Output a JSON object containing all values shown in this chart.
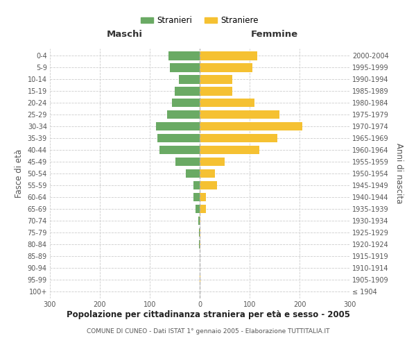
{
  "age_groups": [
    "100+",
    "95-99",
    "90-94",
    "85-89",
    "80-84",
    "75-79",
    "70-74",
    "65-69",
    "60-64",
    "55-59",
    "50-54",
    "45-49",
    "40-44",
    "35-39",
    "30-34",
    "25-29",
    "20-24",
    "15-19",
    "10-14",
    "5-9",
    "0-4"
  ],
  "birth_years": [
    "≤ 1904",
    "1905-1909",
    "1910-1914",
    "1915-1919",
    "1920-1924",
    "1925-1929",
    "1930-1934",
    "1935-1939",
    "1940-1944",
    "1945-1949",
    "1950-1954",
    "1955-1959",
    "1960-1964",
    "1965-1969",
    "1970-1974",
    "1975-1979",
    "1980-1984",
    "1985-1989",
    "1990-1994",
    "1995-1999",
    "2000-2004"
  ],
  "maschi": [
    0,
    0,
    0,
    0,
    1,
    2,
    3,
    8,
    12,
    13,
    28,
    48,
    80,
    85,
    88,
    65,
    55,
    50,
    42,
    60,
    62
  ],
  "femmine": [
    0,
    1,
    0,
    0,
    1,
    1,
    2,
    12,
    13,
    35,
    30,
    50,
    120,
    155,
    205,
    160,
    110,
    65,
    65,
    105,
    115
  ],
  "color_maschi": "#6aaa64",
  "color_femmine": "#f5c132",
  "title": "Popolazione per cittadinanza straniera per età e sesso - 2005",
  "subtitle": "COMUNE DI CUNEO - Dati ISTAT 1° gennaio 2005 - Elaborazione TUTTITALIA.IT",
  "xlabel_left": "Maschi",
  "xlabel_right": "Femmine",
  "ylabel_left": "Fasce di età",
  "ylabel_right": "Anni di nascita",
  "legend_maschi": "Stranieri",
  "legend_femmine": "Straniere",
  "xlim": 300,
  "background_color": "#ffffff",
  "grid_color": "#cccccc"
}
